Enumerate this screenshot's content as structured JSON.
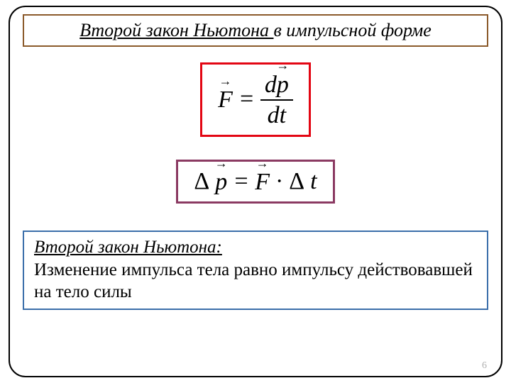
{
  "title": {
    "underlined_part": "Второй закон Ньютона ",
    "rest": "в импульсной форме"
  },
  "primary_eq": {
    "lhs_sym": "F",
    "eq_sign": "=",
    "num_d": "d",
    "num_sym": "p",
    "den_d": "d",
    "den_t": "t"
  },
  "secondary_eq": {
    "delta1": "Δ",
    "p_sym": "p",
    "eq_sign": "=",
    "f_sym": "F",
    "dot": "·",
    "delta2": "Δ",
    "t_sym": "t"
  },
  "definition": {
    "heading": "Второй закон Ньютона:",
    "body": "Изменение импульса тела равно импульсу действовавшей на тело силы"
  },
  "page_number": "6",
  "colors": {
    "panel_border": "#000000",
    "title_border": "#8b5a2b",
    "f1_border": "#e30613",
    "f2_border": "#8b3a62",
    "def_border": "#3b6eaa",
    "page_num_color": "#b0b0b0"
  }
}
